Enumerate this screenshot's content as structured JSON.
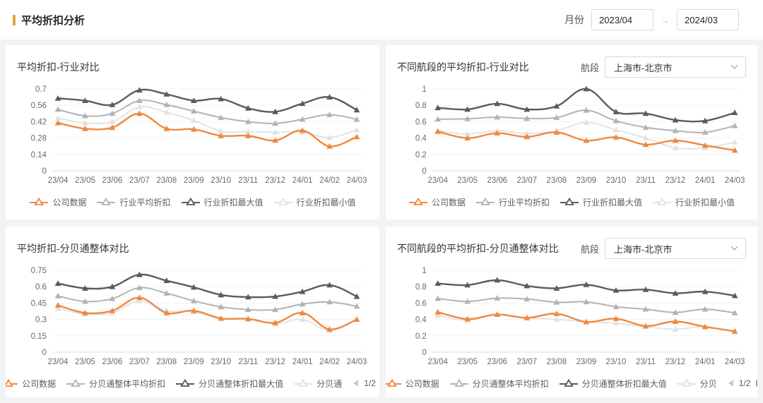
{
  "header": {
    "title": "平均折扣分析",
    "filter": {
      "label": "月份",
      "from": "2023/04",
      "arrow": "→",
      "to": "2024/03"
    }
  },
  "colors": {
    "company": "#f0883e",
    "avg": "#b3b3b3",
    "max": "#5b5b5b",
    "min": "#e2e2e2",
    "accent": "#e6a23c"
  },
  "charts": [
    {
      "title": "平均折扣-行业对比",
      "segment_select": null,
      "chart_data": {
        "type": "line",
        "categories": [
          "23/04",
          "23/05",
          "23/06",
          "23/07",
          "23/08",
          "23/09",
          "23/10",
          "23/11",
          "23/12",
          "24/01",
          "24/02",
          "24/03"
        ],
        "ylim": [
          0,
          0.7
        ],
        "yticks": [
          0,
          0.14,
          0.28,
          0.42,
          0.56,
          0.7
        ],
        "series": [
          {
            "name": "公司数据",
            "color_key": "company",
            "values": [
              0.41,
              0.36,
              0.37,
              0.49,
              0.36,
              0.355,
              0.3,
              0.3,
              0.26,
              0.345,
              0.21,
              0.29
            ]
          },
          {
            "name": "行业平均折扣",
            "color_key": "avg",
            "values": [
              0.525,
              0.47,
              0.49,
              0.6,
              0.565,
              0.51,
              0.455,
              0.42,
              0.405,
              0.44,
              0.48,
              0.44
            ]
          },
          {
            "name": "行业折扣最大值",
            "color_key": "max",
            "values": [
              0.62,
              0.6,
              0.565,
              0.69,
              0.655,
              0.6,
              0.615,
              0.535,
              0.505,
              0.575,
              0.63,
              0.52
            ]
          },
          {
            "name": "行业折扣最小值",
            "color_key": "min",
            "values": [
              0.45,
              0.41,
              0.42,
              0.545,
              0.5,
              0.43,
              0.34,
              0.335,
              0.33,
              0.33,
              0.285,
              0.35
            ]
          }
        ],
        "legend": {
          "items": [
            "公司数据",
            "行业平均折扣",
            "行业折扣最大值",
            "行业折扣最小值"
          ],
          "pagination": null
        }
      }
    },
    {
      "title": "不同航段的平均折扣-行业对比",
      "segment_select": {
        "label": "航段",
        "value": "上海市-北京市"
      },
      "chart_data": {
        "type": "line",
        "categories": [
          "23/04",
          "23/05",
          "23/06",
          "23/07",
          "23/08",
          "23/09",
          "23/10",
          "23/11",
          "23/12",
          "24/01",
          "24/03"
        ],
        "ylim": [
          0,
          1
        ],
        "yticks": [
          0,
          0.2,
          0.4,
          0.6,
          0.8,
          1
        ],
        "series": [
          {
            "name": "公司数据",
            "color_key": "company",
            "values": [
              0.48,
              0.4,
              0.46,
              0.415,
              0.47,
              0.37,
              0.41,
              0.32,
              0.37,
              0.31,
              0.25
            ]
          },
          {
            "name": "行业平均折扣",
            "color_key": "avg",
            "values": [
              0.63,
              0.635,
              0.655,
              0.64,
              0.65,
              0.74,
              0.61,
              0.53,
              0.49,
              0.47,
              0.55
            ]
          },
          {
            "name": "行业折扣最大值",
            "color_key": "max",
            "values": [
              0.77,
              0.75,
              0.82,
              0.75,
              0.79,
              1.0,
              0.72,
              0.7,
              0.62,
              0.61,
              0.71
            ]
          },
          {
            "name": "行业折扣最小值",
            "color_key": "min",
            "values": [
              0.49,
              0.45,
              0.49,
              0.455,
              0.49,
              0.59,
              0.5,
              0.4,
              0.28,
              0.28,
              0.35
            ]
          }
        ],
        "legend": {
          "items": [
            "公司数据",
            "行业平均折扣",
            "行业折扣最大值",
            "行业折扣最小值"
          ],
          "pagination": null
        }
      }
    },
    {
      "title": "平均折扣-分贝通整体对比",
      "segment_select": null,
      "chart_data": {
        "type": "line",
        "categories": [
          "23/04",
          "23/05",
          "23/06",
          "23/07",
          "23/08",
          "23/09",
          "23/10",
          "23/11",
          "23/12",
          "24/01",
          "24/02",
          "24/03"
        ],
        "ylim": [
          0,
          0.75
        ],
        "yticks": [
          0,
          0.15,
          0.3,
          0.45,
          0.6,
          0.75
        ],
        "series": [
          {
            "name": "公司数据",
            "color_key": "company",
            "values": [
              0.43,
              0.36,
              0.38,
              0.5,
              0.36,
              0.38,
              0.31,
              0.305,
              0.27,
              0.36,
              0.21,
              0.3
            ]
          },
          {
            "name": "分贝通整体平均折扣",
            "color_key": "avg",
            "values": [
              0.515,
              0.465,
              0.49,
              0.59,
              0.54,
              0.47,
              0.415,
              0.39,
              0.39,
              0.44,
              0.46,
              0.42
            ]
          },
          {
            "name": "分贝通整体折扣最大值",
            "color_key": "max",
            "values": [
              0.63,
              0.585,
              0.6,
              0.71,
              0.655,
              0.595,
              0.525,
              0.505,
              0.51,
              0.555,
              0.615,
              0.51
            ]
          },
          {
            "name": "分贝通",
            "color_key": "min",
            "values": [
              0.4,
              0.35,
              0.36,
              0.47,
              0.38,
              0.37,
              0.31,
              0.31,
              0.26,
              0.3,
              0.2,
              0.3
            ]
          }
        ],
        "legend": {
          "items": [
            "公司数据",
            "分贝通整体平均折扣",
            "分贝通整体折扣最大值",
            "分贝通"
          ],
          "pagination": {
            "current": "1/2"
          }
        }
      }
    },
    {
      "title": "不同航段的平均折扣-分贝通整体对比",
      "segment_select": {
        "label": "航段",
        "value": "上海市-北京市"
      },
      "chart_data": {
        "type": "line",
        "categories": [
          "23/04",
          "23/05",
          "23/06",
          "23/07",
          "23/08",
          "23/09",
          "23/10",
          "23/11",
          "23/12",
          "24/01",
          "24/03"
        ],
        "ylim": [
          0,
          1
        ],
        "yticks": [
          0,
          0.2,
          0.4,
          0.6,
          0.8,
          1
        ],
        "series": [
          {
            "name": "公司数据",
            "color_key": "company",
            "values": [
              0.49,
              0.405,
              0.46,
              0.42,
              0.47,
              0.37,
              0.41,
              0.32,
              0.375,
              0.31,
              0.255
            ]
          },
          {
            "name": "分贝通整体平均折扣",
            "color_key": "avg",
            "values": [
              0.655,
              0.62,
              0.66,
              0.65,
              0.61,
              0.615,
              0.555,
              0.525,
              0.485,
              0.525,
              0.48
            ]
          },
          {
            "name": "分贝通整体折扣最大值",
            "color_key": "max",
            "values": [
              0.84,
              0.82,
              0.88,
              0.81,
              0.78,
              0.825,
              0.755,
              0.765,
              0.72,
              0.74,
              0.69
            ]
          },
          {
            "name": "分贝",
            "color_key": "min",
            "values": [
              0.45,
              0.39,
              0.46,
              0.42,
              0.4,
              0.37,
              0.355,
              0.31,
              0.28,
              0.31,
              0.25
            ]
          }
        ],
        "legend": {
          "items": [
            "公司数据",
            "分贝通整体平均折扣",
            "分贝通整体折扣最大值",
            "分贝"
          ],
          "pagination": {
            "current": "1/2"
          }
        }
      }
    }
  ]
}
